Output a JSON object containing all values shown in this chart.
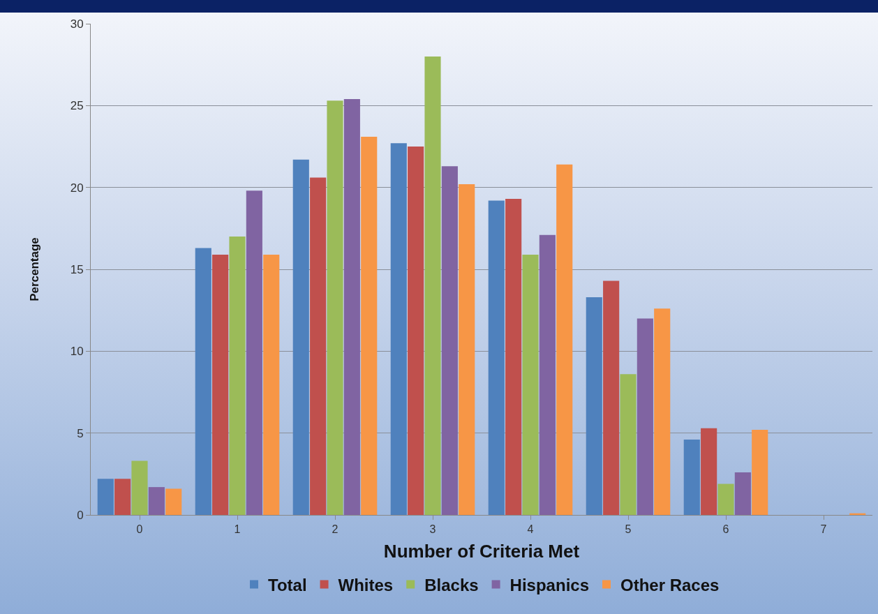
{
  "chart_data": {
    "type": "bar",
    "xlabel": "Number of Criteria Met",
    "ylabel": "Percentage",
    "categories": [
      "0",
      "1",
      "2",
      "3",
      "4",
      "5",
      "6",
      "7"
    ],
    "series": [
      {
        "name": "Total",
        "color": "#4f81bd",
        "values": [
          2.2,
          16.3,
          21.7,
          22.7,
          19.2,
          13.3,
          4.6,
          0
        ]
      },
      {
        "name": "Whites",
        "color": "#c0504d",
        "values": [
          2.2,
          15.9,
          20.6,
          22.5,
          19.3,
          14.3,
          5.3,
          0
        ]
      },
      {
        "name": "Blacks",
        "color": "#9bbb59",
        "values": [
          3.3,
          17.0,
          25.3,
          28.0,
          15.9,
          8.6,
          1.9,
          0
        ]
      },
      {
        "name": "Hispanics",
        "color": "#8064a2",
        "values": [
          1.7,
          19.8,
          25.4,
          21.3,
          17.1,
          12.0,
          2.6,
          0
        ]
      },
      {
        "name": "Other Races",
        "color": "#f79646",
        "values": [
          1.6,
          15.9,
          23.1,
          20.2,
          21.4,
          12.6,
          5.2,
          0.1
        ]
      }
    ],
    "ylim": [
      0,
      30
    ],
    "yticks": [
      0,
      5,
      10,
      15,
      20,
      25,
      30
    ],
    "grid": "y",
    "legend": "bottom"
  }
}
